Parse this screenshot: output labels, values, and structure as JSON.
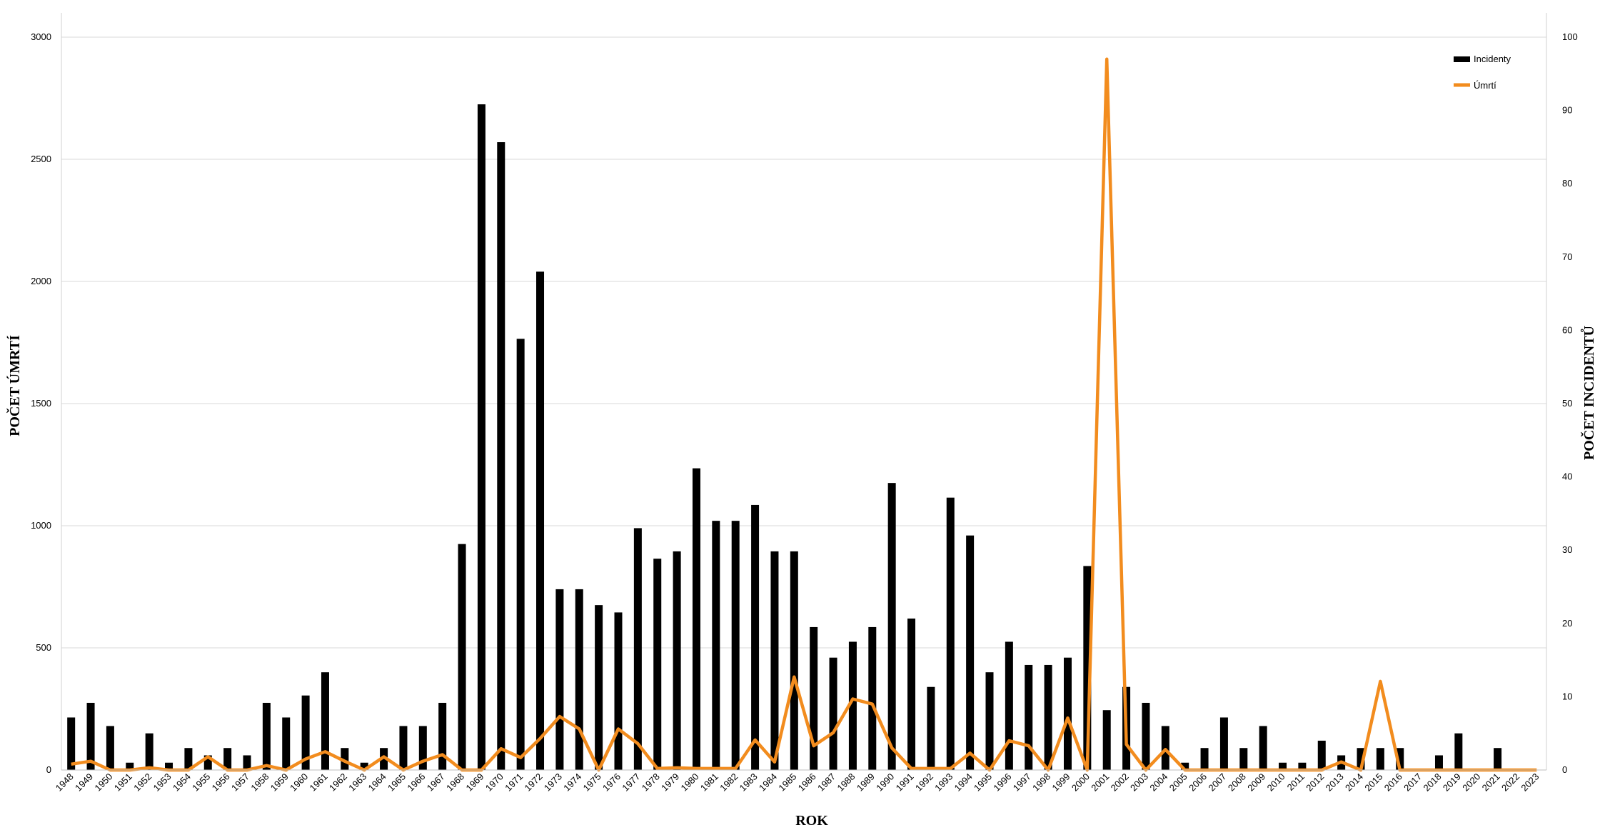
{
  "chart_data": {
    "type": "bar+line",
    "title": "",
    "xlabel": "ROK",
    "ylabel_left": "POČET ÚMRTÍ",
    "ylabel_right": "POČET INCIDENTŮ",
    "ylim_left": [
      0,
      3000
    ],
    "yticks_left": [
      0,
      500,
      1000,
      1500,
      2000,
      2500,
      3000
    ],
    "ylim_right": [
      0,
      100
    ],
    "yticks_right": [
      0,
      10,
      20,
      30,
      40,
      50,
      60,
      70,
      80,
      90,
      100
    ],
    "grid": true,
    "legend_position": "top-right",
    "categories": [
      "1948",
      "1949",
      "1950",
      "1951",
      "1952",
      "1953",
      "1954",
      "1955",
      "1956",
      "1957",
      "1958",
      "1959",
      "1960",
      "1961",
      "1962",
      "1963",
      "1964",
      "1965",
      "1966",
      "1967",
      "1968",
      "1969",
      "1970",
      "1971",
      "1972",
      "1973",
      "1974",
      "1975",
      "1976",
      "1977",
      "1978",
      "1979",
      "1980",
      "1981",
      "1982",
      "1983",
      "1984",
      "1985",
      "1986",
      "1987",
      "1988",
      "1989",
      "1990",
      "1991",
      "1992",
      "1993",
      "1994",
      "1995",
      "1996",
      "1997",
      "1998",
      "1999",
      "2000",
      "2001",
      "2002",
      "2003",
      "2004",
      "2005",
      "2006",
      "2007",
      "2008",
      "2009",
      "2010",
      "2011",
      "2012",
      "2013",
      "2014",
      "2015",
      "2016",
      "2017",
      "2018",
      "2019",
      "2020",
      "2021",
      "2022",
      "2023"
    ],
    "series": [
      {
        "name": "Incidenty",
        "kind": "bar",
        "axis": "left",
        "color": "#000000",
        "values": [
          215,
          275,
          180,
          30,
          150,
          30,
          90,
          60,
          90,
          60,
          275,
          215,
          305,
          400,
          90,
          30,
          90,
          180,
          180,
          275,
          925,
          2725,
          2570,
          1765,
          2040,
          740,
          740,
          675,
          645,
          990,
          865,
          895,
          1235,
          1020,
          1020,
          1085,
          895,
          895,
          585,
          460,
          525,
          585,
          1175,
          620,
          340,
          1115,
          960,
          400,
          525,
          430,
          430,
          460,
          835,
          245,
          340,
          275,
          180,
          30,
          90,
          215,
          90,
          180,
          30,
          30,
          120,
          60,
          90,
          90,
          90,
          0,
          60,
          150,
          0,
          90,
          0,
          0
        ]
      },
      {
        "name": "Úmrtí",
        "kind": "line",
        "axis": "right",
        "color": "#f28c1e",
        "values": [
          0.8,
          1.2,
          0,
          0,
          0.3,
          0,
          0,
          1.8,
          0,
          0,
          0.6,
          0,
          1.5,
          2.5,
          1.2,
          0,
          1.8,
          0,
          1.2,
          2.1,
          0,
          0,
          2.9,
          1.7,
          4.3,
          7.3,
          5.6,
          0,
          5.6,
          3.6,
          0.2,
          0.3,
          0.2,
          0.2,
          0.2,
          4.1,
          1.1,
          12.7,
          3.3,
          5.1,
          9.7,
          9.0,
          3.0,
          0.2,
          0.2,
          0.2,
          2.3,
          0,
          4.0,
          3.3,
          0,
          7.1,
          0,
          97,
          3.5,
          0,
          2.8,
          0,
          0,
          0,
          0,
          0,
          0,
          0,
          0,
          1.1,
          0,
          12.1,
          0,
          0,
          0,
          0,
          0,
          0,
          0,
          0
        ]
      }
    ]
  }
}
